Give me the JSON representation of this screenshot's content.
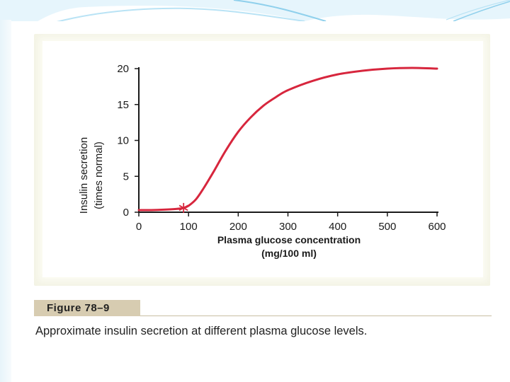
{
  "figure": {
    "label": "Figure 78–9",
    "caption": "Approximate insulin secretion at different plasma glucose levels."
  },
  "colors": {
    "curve": "#d7263d",
    "marker": "#d7263d",
    "figure_background": "#f3f3e4",
    "label_band": "#d7ccb1",
    "decor_blue": "#8fd0ec"
  },
  "chart_data": {
    "type": "line",
    "xlabel": "Plasma glucose concentration",
    "xlabel_unit": "(mg/100 ml)",
    "ylabel": "Insulin secretion",
    "ylabel_unit": "(times normal)",
    "xlim": [
      0,
      600
    ],
    "ylim": [
      0,
      20
    ],
    "x_ticks": [
      "0",
      "100",
      "200",
      "300",
      "400",
      "500",
      "600"
    ],
    "y_ticks": [
      "0",
      "5",
      "10",
      "15",
      "20"
    ],
    "grid": false,
    "series": [
      {
        "x": [
          0,
          25,
          50,
          75,
          90,
          100,
          115,
          130,
          150,
          175,
          200,
          225,
          250,
          275,
          300,
          350,
          400,
          450,
          500,
          550,
          600
        ],
        "y": [
          0.3,
          0.3,
          0.35,
          0.45,
          0.6,
          0.9,
          1.8,
          3.3,
          5.6,
          8.6,
          11.2,
          13.2,
          14.8,
          16.0,
          17.0,
          18.3,
          19.2,
          19.7,
          20.0,
          20.1,
          20.0
        ]
      }
    ],
    "marker": {
      "x": 90,
      "y": 0.6,
      "symbol": "*"
    }
  }
}
